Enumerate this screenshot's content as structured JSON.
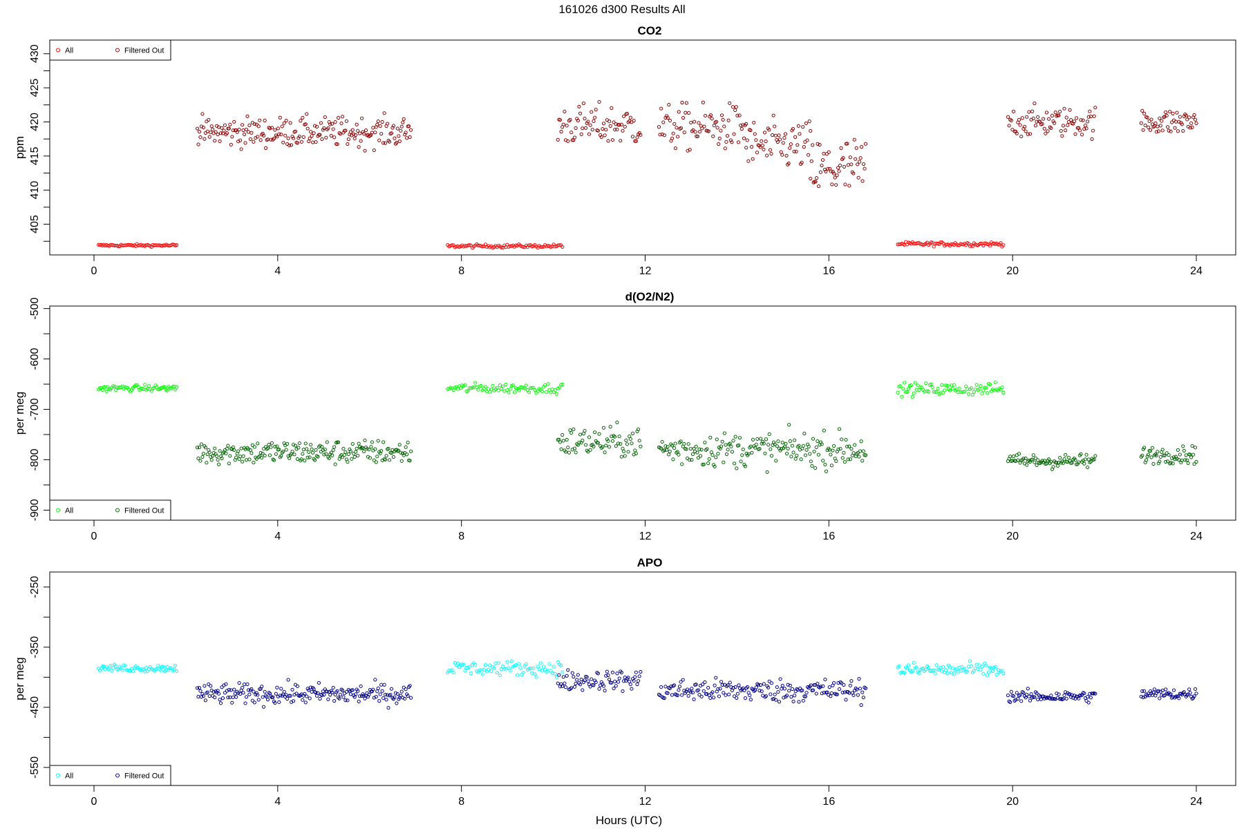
{
  "figure": {
    "title": "161026   d300   Results All",
    "xlabel": "Hours (UTC)"
  },
  "chart_data": [
    {
      "type": "scatter",
      "title": "CO2",
      "xlabel": "Hours (UTC)",
      "ylabel": "ppm",
      "xlim": [
        0,
        24
      ],
      "ylim": [
        400.5,
        432
      ],
      "xticks": [
        0,
        4,
        8,
        12,
        16,
        20,
        24
      ],
      "yticks": [
        405,
        410,
        415,
        420,
        425,
        430
      ],
      "grid": false,
      "legend": {
        "position": "top-left",
        "entries": [
          "All",
          "Filtered Out"
        ]
      },
      "series": [
        {
          "name": "All",
          "color": "#ff0000",
          "segments": [
            {
              "x_start": 0.1,
              "x_end": 1.8,
              "mean": 401.9,
              "spread": 0.15,
              "n": 60
            },
            {
              "x_start": 7.7,
              "x_end": 10.2,
              "mean": 401.8,
              "spread": 0.2,
              "n": 80
            },
            {
              "x_start": 17.5,
              "x_end": 19.8,
              "mean": 402.1,
              "spread": 0.25,
              "n": 80
            }
          ]
        },
        {
          "name": "Filtered Out",
          "color": "#8b0000",
          "segments": [
            {
              "x_start": 2.25,
              "x_end": 6.9,
              "mean": 418.5,
              "spread": 1.8,
              "n": 210
            },
            {
              "x_start": 10.1,
              "x_end": 11.9,
              "mean": 419.5,
              "spread": 2.5,
              "n": 75
            },
            {
              "x_start": 12.3,
              "x_end": 14.2,
              "mean": 419.2,
              "spread": 2.8,
              "n": 80
            },
            {
              "x_start": 14.2,
              "x_end": 15.6,
              "mean": 416.5,
              "spread": 3.0,
              "n": 60
            },
            {
              "x_start": 15.6,
              "x_end": 16.8,
              "mean": 413.0,
              "spread": 4.0,
              "n": 55
            },
            {
              "x_start": 19.9,
              "x_end": 21.8,
              "mean": 420.0,
              "spread": 1.8,
              "n": 80
            },
            {
              "x_start": 22.8,
              "x_end": 24.0,
              "mean": 420.0,
              "spread": 1.6,
              "n": 55
            }
          ]
        }
      ]
    },
    {
      "type": "scatter",
      "title": "d(O2/N2)",
      "xlabel": "Hours (UTC)",
      "ylabel": "per meg",
      "xlim": [
        0,
        24
      ],
      "ylim": [
        -920,
        -495
      ],
      "xticks": [
        0,
        4,
        8,
        12,
        16,
        20,
        24
      ],
      "yticks": [
        -500,
        -600,
        -700,
        -800,
        -900
      ],
      "grid": false,
      "legend": {
        "position": "bottom-left",
        "entries": [
          "All",
          "Filtered Out"
        ]
      },
      "series": [
        {
          "name": "All",
          "color": "#00ff00",
          "segments": [
            {
              "x_start": 0.1,
              "x_end": 1.8,
              "mean": -658,
              "spread": 5,
              "n": 60
            },
            {
              "x_start": 7.7,
              "x_end": 10.2,
              "mean": -658,
              "spread": 8,
              "n": 80
            },
            {
              "x_start": 17.5,
              "x_end": 19.8,
              "mean": -660,
              "spread": 10,
              "n": 80
            }
          ]
        },
        {
          "name": "Filtered Out",
          "color": "#006400",
          "segments": [
            {
              "x_start": 2.25,
              "x_end": 6.9,
              "mean": -785,
              "spread": 20,
              "n": 210
            },
            {
              "x_start": 10.1,
              "x_end": 11.9,
              "mean": -765,
              "spread": 25,
              "n": 75
            },
            {
              "x_start": 12.3,
              "x_end": 16.8,
              "mean": -780,
              "spread": 28,
              "n": 190
            },
            {
              "x_start": 19.9,
              "x_end": 21.8,
              "mean": -803,
              "spread": 12,
              "n": 80
            },
            {
              "x_start": 22.8,
              "x_end": 24.0,
              "mean": -790,
              "spread": 14,
              "n": 55
            }
          ]
        }
      ]
    },
    {
      "type": "scatter",
      "title": "APO",
      "xlabel": "Hours (UTC)",
      "ylabel": "per meg",
      "xlim": [
        0,
        24
      ],
      "ylim": [
        -580,
        -225
      ],
      "xticks": [
        0,
        4,
        8,
        12,
        16,
        20,
        24
      ],
      "yticks": [
        -250,
        -350,
        -450,
        -550
      ],
      "grid": false,
      "legend": {
        "position": "bottom-left",
        "entries": [
          "All",
          "Filtered Out"
        ]
      },
      "series": [
        {
          "name": "All",
          "color": "#00ffff",
          "segments": [
            {
              "x_start": 0.1,
              "x_end": 1.8,
              "mean": -385,
              "spread": 5,
              "n": 60
            },
            {
              "x_start": 7.7,
              "x_end": 10.2,
              "mean": -385,
              "spread": 10,
              "n": 80
            },
            {
              "x_start": 17.5,
              "x_end": 19.8,
              "mean": -388,
              "spread": 10,
              "n": 80
            }
          ]
        },
        {
          "name": "Filtered Out",
          "color": "#00008b",
          "segments": [
            {
              "x_start": 2.25,
              "x_end": 6.9,
              "mean": -428,
              "spread": 14,
              "n": 210
            },
            {
              "x_start": 10.1,
              "x_end": 11.9,
              "mean": -405,
              "spread": 14,
              "n": 75
            },
            {
              "x_start": 12.3,
              "x_end": 16.8,
              "mean": -422,
              "spread": 16,
              "n": 190
            },
            {
              "x_start": 19.9,
              "x_end": 21.8,
              "mean": -432,
              "spread": 8,
              "n": 80
            },
            {
              "x_start": 22.8,
              "x_end": 24.0,
              "mean": -428,
              "spread": 8,
              "n": 55
            }
          ]
        }
      ]
    }
  ]
}
